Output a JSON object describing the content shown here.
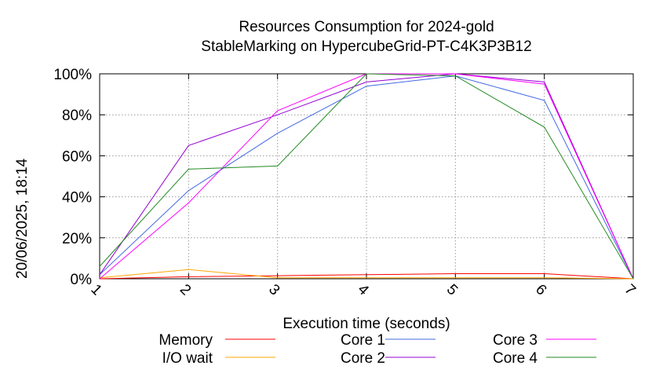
{
  "chart_data": {
    "type": "line",
    "title": "Resources Consumption for 2024-gold",
    "subtitle": "StableMarking on HypercubeGrid-PT-C4K3P3B12",
    "xlabel": "Execution time (seconds)",
    "ylabel": "",
    "side_label": "20/06/2025, 18:14",
    "x": [
      1,
      2,
      3,
      4,
      5,
      6,
      7
    ],
    "x_ticks": [
      "1",
      "2",
      "3",
      "4",
      "5",
      "6",
      "7"
    ],
    "y_ticks": [
      "0%",
      "20%",
      "40%",
      "60%",
      "80%",
      "100%"
    ],
    "xlim": [
      1,
      7
    ],
    "ylim": [
      0,
      100
    ],
    "grid": true,
    "legend_position": "bottom",
    "series": [
      {
        "name": "Memory",
        "color": "#ff0000",
        "values": [
          0,
          1,
          1.5,
          2,
          2.5,
          2.5,
          0
        ]
      },
      {
        "name": "I/O wait",
        "color": "#ffa500",
        "values": [
          0.5,
          4.5,
          0.5,
          0.5,
          0.5,
          0.5,
          0
        ]
      },
      {
        "name": "Core 1",
        "color": "#4169e1",
        "values": [
          2,
          43,
          71,
          94,
          99,
          87,
          0
        ]
      },
      {
        "name": "Core 2",
        "color": "#9400d3",
        "values": [
          2,
          65,
          80,
          96,
          100,
          96,
          0
        ]
      },
      {
        "name": "Core 3",
        "color": "#ff00ff",
        "values": [
          0,
          37,
          82,
          100,
          100,
          95,
          0
        ]
      },
      {
        "name": "Core 4",
        "color": "#228b22",
        "values": [
          6,
          53.5,
          55,
          100,
          99,
          74,
          0
        ]
      }
    ]
  }
}
